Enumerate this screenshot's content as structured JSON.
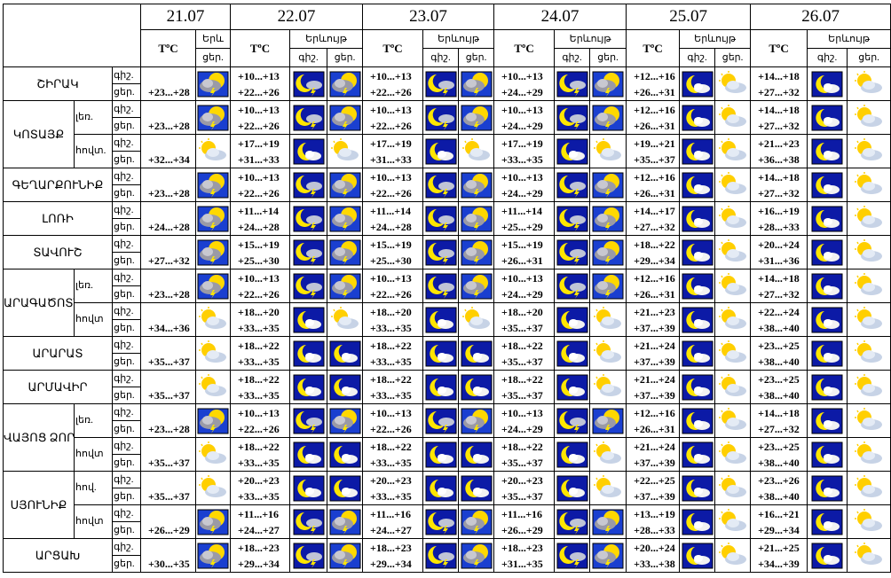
{
  "header": {
    "dates": [
      "21.07",
      "22.07",
      "23.07",
      "24.07",
      "25.07",
      "26.07"
    ],
    "temp_label": "TºC",
    "phenomenon_short": "Երև",
    "phenomenon_label": "Երևույթ",
    "night": "գիշ.",
    "day": "ցեր."
  },
  "rows": [
    {
      "name": "ՇԻՐԱԿ",
      "zones": [
        {
          "period": [
            "գիշ.",
            "ցեր."
          ],
          "d21": "+23...+28",
          "forecast": [
            [
              "+10...+13",
              "+22...+26"
            ],
            [
              "+10...+13",
              "+22...+26"
            ],
            [
              "+10...+13",
              "+24...+29"
            ],
            [
              "+12...+16",
              "+26...+31"
            ],
            [
              "+14...+18",
              "+27...+32"
            ]
          ]
        }
      ]
    },
    {
      "name": "ԿՈՏԱՅՔ",
      "zones": [
        {
          "label": "լեռ.",
          "period": [
            "գիշ.",
            "ցեր."
          ],
          "d21": "+23...+28",
          "forecast": [
            [
              "+10...+13",
              "+22...+26"
            ],
            [
              "+10...+13",
              "+22...+26"
            ],
            [
              "+10...+13",
              "+24...+29"
            ],
            [
              "+12...+16",
              "+26...+31"
            ],
            [
              "+14...+18",
              "+27...+32"
            ]
          ]
        },
        {
          "label": "հովտ.",
          "period": [
            "գիշ.",
            "ցեր."
          ],
          "d21": "+32...+34",
          "forecast": [
            [
              "+17...+19",
              "+31...+33"
            ],
            [
              "+17...+19",
              "+31...+33"
            ],
            [
              "+17...+19",
              "+33...+35"
            ],
            [
              "+19...+21",
              "+35...+37"
            ],
            [
              "+21...+23",
              "+36...+38"
            ]
          ]
        }
      ]
    },
    {
      "name": "ԳԵՂԱՐՔՈՒՆԻՔ",
      "zones": [
        {
          "period": [
            "գիշ.",
            "ցեր."
          ],
          "d21": "+23...+28",
          "forecast": [
            [
              "+10...+13",
              "+22...+26"
            ],
            [
              "+10...+13",
              "+22...+26"
            ],
            [
              "+10...+13",
              "+24...+29"
            ],
            [
              "+12...+16",
              "+26...+31"
            ],
            [
              "+14...+18",
              "+27...+32"
            ]
          ]
        }
      ]
    },
    {
      "name": "ԼՈՌԻ",
      "zones": [
        {
          "period": [
            "գիշ.",
            "ցեր."
          ],
          "d21": "+24...+28",
          "forecast": [
            [
              "+11...+14",
              "+24...+28"
            ],
            [
              "+11...+14",
              "+24...+28"
            ],
            [
              "+11...+14",
              "+25...+29"
            ],
            [
              "+14...+17",
              "+27...+32"
            ],
            [
              "+16...+19",
              "+28...+33"
            ]
          ]
        }
      ]
    },
    {
      "name": "ՏԱՎՈՒՇ",
      "zones": [
        {
          "period": [
            "գիշ.",
            "ցեր."
          ],
          "d21": "+27...+32",
          "forecast": [
            [
              "+15...+19",
              "+25...+30"
            ],
            [
              "+15...+19",
              "+25...+30"
            ],
            [
              "+15...+19",
              "+26...+31"
            ],
            [
              "+18...+22",
              "+29...+34"
            ],
            [
              "+20...+24",
              "+31...+36"
            ]
          ]
        }
      ]
    },
    {
      "name": "ԱՐԱԳԱԾՈՏՆ",
      "zones": [
        {
          "label": "լեռ.",
          "period": [
            "գիշ.",
            "ցեր."
          ],
          "d21": "+23...+28",
          "forecast": [
            [
              "+10...+13",
              "+22...+26"
            ],
            [
              "+10...+13",
              "+22...+26"
            ],
            [
              "+10...+13",
              "+24...+29"
            ],
            [
              "+12...+16",
              "+26...+31"
            ],
            [
              "+14...+18",
              "+27...+32"
            ]
          ]
        },
        {
          "label": "հովտ",
          "period": [
            "գիշ.",
            "ցեր."
          ],
          "d21": "+34...+36",
          "forecast": [
            [
              "+18...+20",
              "+33...+35"
            ],
            [
              "+18...+20",
              "+33...+35"
            ],
            [
              "+18...+20",
              "+35...+37"
            ],
            [
              "+21...+23",
              "+37...+39"
            ],
            [
              "+22...+24",
              "+38...+40"
            ]
          ]
        }
      ]
    },
    {
      "name": "ԱՐԱՐԱՏ",
      "zones": [
        {
          "period": [
            "գիշ.",
            "ցեր."
          ],
          "d21": "+35...+37",
          "forecast": [
            [
              "+18...+22",
              "+33...+35"
            ],
            [
              "+18...+22",
              "+33...+35"
            ],
            [
              "+18...+22",
              "+35...+37"
            ],
            [
              "+21...+24",
              "+37...+39"
            ],
            [
              "+23...+25",
              "+38...+40"
            ]
          ]
        }
      ]
    },
    {
      "name": "ԱՐՄԱՎԻՐ",
      "zones": [
        {
          "period": [
            "գիշ.",
            "ցեր."
          ],
          "d21": "+35...+37",
          "forecast": [
            [
              "+18...+22",
              "+33...+35"
            ],
            [
              "+18...+22",
              "+33...+35"
            ],
            [
              "+18...+22",
              "+35...+37"
            ],
            [
              "+21...+24",
              "+37...+39"
            ],
            [
              "+23...+25",
              "+38...+40"
            ]
          ]
        }
      ]
    },
    {
      "name": "ՎԱՅՈՑ ՁՈՐ",
      "zones": [
        {
          "label": "լեռ.",
          "period": [
            "գիշ.",
            "ցեր."
          ],
          "d21": "+23...+28",
          "forecast": [
            [
              "+10...+13",
              "+22...+26"
            ],
            [
              "+10...+13",
              "+22...+26"
            ],
            [
              "+10...+13",
              "+24...+29"
            ],
            [
              "+12...+16",
              "+26...+31"
            ],
            [
              "+14...+18",
              "+27...+32"
            ]
          ]
        },
        {
          "label": "հովտ",
          "period": [
            "գիշ.",
            "ցեր."
          ],
          "d21": "+35...+37",
          "forecast": [
            [
              "+18...+22",
              "+33...+35"
            ],
            [
              "+18...+22",
              "+33...+35"
            ],
            [
              "+18...+22",
              "+35...+37"
            ],
            [
              "+21...+24",
              "+37...+39"
            ],
            [
              "+23...+25",
              "+38...+40"
            ]
          ]
        }
      ]
    },
    {
      "name": "ՍՅՈՒՆԻՔ",
      "zones": [
        {
          "label": "հով.",
          "period": [
            "գիշ.",
            "ցեր."
          ],
          "d21": "+35...+37",
          "forecast": [
            [
              "+20...+23",
              "+33...+35"
            ],
            [
              "+20...+23",
              "+33...+35"
            ],
            [
              "+20...+23",
              "+35...+37"
            ],
            [
              "+22...+25",
              "+37...+39"
            ],
            [
              "+23...+26",
              "+38...+40"
            ]
          ]
        },
        {
          "label": "հովտ",
          "period": [
            "գիշ.",
            "ցեր."
          ],
          "d21": "+26...+29",
          "forecast": [
            [
              "+11...+16",
              "+24...+27"
            ],
            [
              "+11...+16",
              "+24...+27"
            ],
            [
              "+11...+16",
              "+26...+29"
            ],
            [
              "+13...+19",
              "+28...+33"
            ],
            [
              "+16...+21",
              "+29...+34"
            ]
          ]
        }
      ]
    },
    {
      "name": "ԱՐՑԱԽ",
      "zones": [
        {
          "period": [
            "գիշ.",
            "ցեր."
          ],
          "d21": "+30...+35",
          "forecast": [
            [
              "+18...+23",
              "+29...+34"
            ],
            [
              "+18...+23",
              "+29...+34"
            ],
            [
              "+18...+23",
              "+31...+35"
            ],
            [
              "+20...+24",
              "+33...+38"
            ],
            [
              "+21...+25",
              "+34...+39"
            ]
          ]
        }
      ]
    }
  ]
}
